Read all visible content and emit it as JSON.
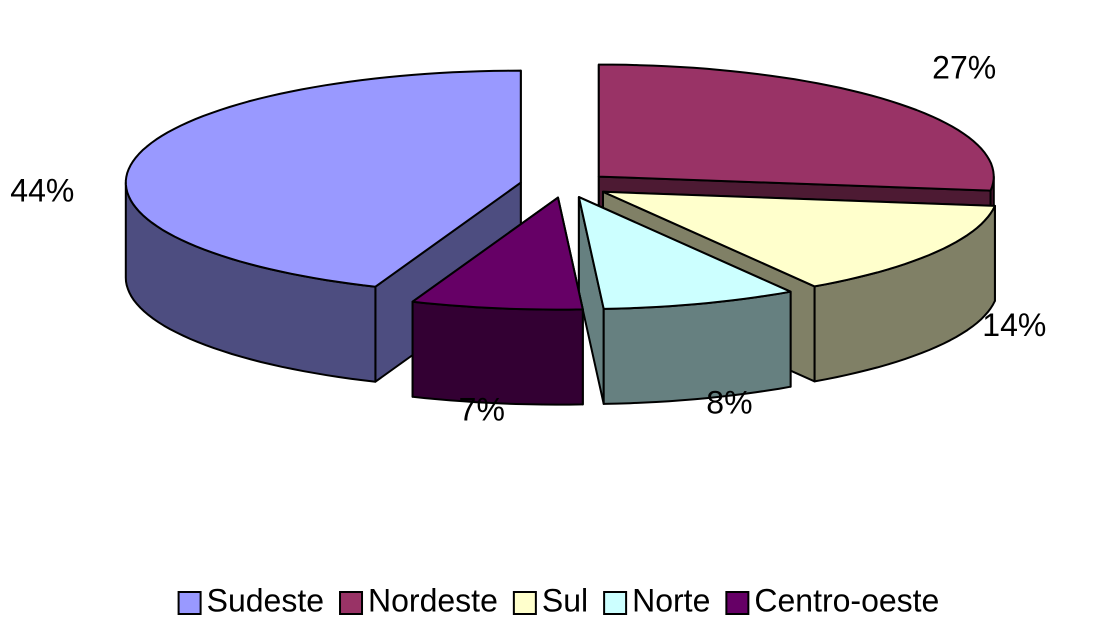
{
  "chart_data": {
    "type": "pie3d",
    "categories": [
      "Nordeste",
      "Sul",
      "Norte",
      "Centro-oeste",
      "Sudeste"
    ],
    "values": [
      27,
      14,
      8,
      7,
      44
    ],
    "value_labels": [
      "27%",
      "14%",
      "8%",
      "7%",
      "44%"
    ],
    "colors": [
      "#993366",
      "#ffffcc",
      "#ccffff",
      "#660066",
      "#9999ff"
    ],
    "legend": "bottom",
    "legend_order": [
      4,
      0,
      1,
      2,
      3
    ]
  }
}
